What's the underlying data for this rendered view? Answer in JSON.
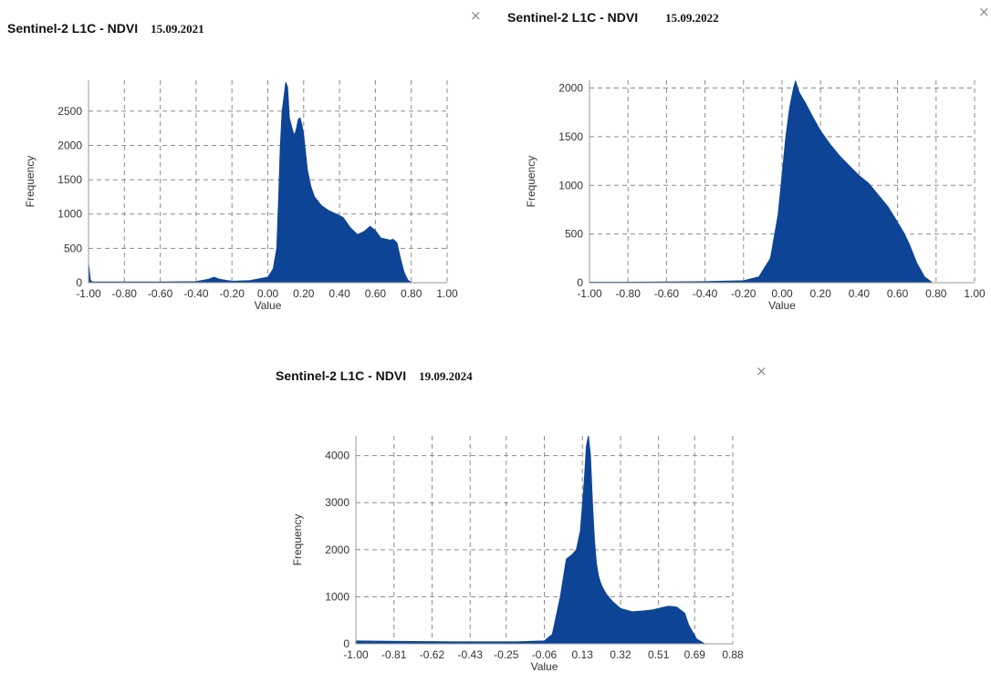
{
  "colors": {
    "fill": "#0d4496",
    "grid": "#8c8c8c",
    "axis": "#999999",
    "close": "#888888"
  },
  "close_icon": "×",
  "chart_data": [
    {
      "type": "area",
      "title": "Sentinel-2 L1C - NDVI",
      "date": "15.09.2021",
      "xlabel": "Value",
      "ylabel": "Frequency",
      "xlim": [
        -1.0,
        1.0
      ],
      "ylim": [
        0,
        2950
      ],
      "xticks": [
        -1.0,
        -0.8,
        -0.6,
        -0.4,
        -0.2,
        0.0,
        0.2,
        0.4,
        0.6,
        0.8,
        1.0
      ],
      "xtick_labels": [
        "-1.00",
        "-0.80",
        "-0.60",
        "-0.40",
        "-0.20",
        "0.00",
        "0.20",
        "0.40",
        "0.60",
        "0.80",
        "1.00"
      ],
      "yticks": [
        0,
        500,
        1000,
        1500,
        2000,
        2500
      ],
      "ytick_labels": [
        "0",
        "500",
        "1000",
        "1500",
        "2000",
        "2500"
      ],
      "grid": true,
      "x": [
        -1.0,
        -0.99,
        -0.98,
        -0.9,
        -0.6,
        -0.4,
        -0.33,
        -0.3,
        -0.27,
        -0.2,
        -0.1,
        0.0,
        0.03,
        0.05,
        0.06,
        0.07,
        0.08,
        0.09,
        0.1,
        0.11,
        0.12,
        0.13,
        0.14,
        0.15,
        0.16,
        0.17,
        0.18,
        0.19,
        0.2,
        0.21,
        0.22,
        0.24,
        0.26,
        0.3,
        0.34,
        0.38,
        0.42,
        0.46,
        0.5,
        0.54,
        0.57,
        0.6,
        0.63,
        0.65,
        0.68,
        0.7,
        0.72,
        0.74,
        0.76,
        0.78,
        0.8
      ],
      "y": [
        280,
        40,
        12,
        10,
        10,
        15,
        50,
        80,
        50,
        20,
        30,
        80,
        200,
        500,
        1200,
        2000,
        2500,
        2700,
        2920,
        2850,
        2400,
        2300,
        2200,
        2150,
        2250,
        2380,
        2400,
        2300,
        2150,
        1900,
        1650,
        1400,
        1250,
        1120,
        1050,
        1000,
        950,
        800,
        700,
        750,
        820,
        760,
        650,
        640,
        620,
        630,
        580,
        350,
        150,
        40,
        0
      ]
    },
    {
      "type": "area",
      "title": "Sentinel-2 L1C - NDVI",
      "date": "15.09.2022",
      "xlabel": "Value",
      "ylabel": "Frequency",
      "xlim": [
        -1.0,
        1.0
      ],
      "ylim": [
        0,
        2080
      ],
      "xticks": [
        -1.0,
        -0.8,
        -0.6,
        -0.4,
        -0.2,
        0.0,
        0.2,
        0.4,
        0.6,
        0.8,
        1.0
      ],
      "xtick_labels": [
        "-1.00",
        "-0.80",
        "-0.60",
        "-0.40",
        "-0.20",
        "0.00",
        "0.20",
        "0.40",
        "0.60",
        "0.80",
        "1.00"
      ],
      "yticks": [
        0,
        500,
        1000,
        1500,
        2000
      ],
      "ytick_labels": [
        "0",
        "500",
        "1000",
        "1500",
        "2000"
      ],
      "grid": true,
      "x": [
        -1.0,
        -0.8,
        -0.4,
        -0.2,
        -0.12,
        -0.06,
        -0.02,
        0.0,
        0.02,
        0.04,
        0.06,
        0.07,
        0.09,
        0.12,
        0.16,
        0.2,
        0.25,
        0.3,
        0.35,
        0.4,
        0.45,
        0.5,
        0.55,
        0.6,
        0.63,
        0.66,
        0.7,
        0.74,
        0.78
      ],
      "y": [
        5,
        5,
        10,
        20,
        60,
        250,
        700,
        1100,
        1500,
        1800,
        2000,
        2070,
        1950,
        1850,
        1700,
        1560,
        1420,
        1300,
        1200,
        1100,
        1020,
        900,
        780,
        620,
        520,
        400,
        200,
        60,
        0
      ]
    },
    {
      "type": "area",
      "title": "Sentinel-2 L1C - NDVI",
      "date": "19.09.2024",
      "xlabel": "Value",
      "ylabel": "Frequency",
      "xlim": [
        -1.0,
        0.88
      ],
      "ylim": [
        0,
        4420
      ],
      "xticks": [
        -1.0,
        -0.81,
        -0.62,
        -0.43,
        -0.25,
        -0.06,
        0.13,
        0.32,
        0.51,
        0.69,
        0.88
      ],
      "xtick_labels": [
        "-1.00",
        "-0.81",
        "-0.62",
        "-0.43",
        "-0.25",
        "-0.06",
        "0.13",
        "0.32",
        "0.51",
        "0.69",
        "0.88"
      ],
      "yticks": [
        0,
        1000,
        2000,
        3000,
        4000
      ],
      "ytick_labels": [
        "0",
        "1000",
        "2000",
        "3000",
        "4000"
      ],
      "grid": true,
      "x": [
        -1.0,
        -0.8,
        -0.5,
        -0.2,
        -0.06,
        -0.02,
        0.02,
        0.05,
        0.08,
        0.1,
        0.12,
        0.14,
        0.15,
        0.16,
        0.17,
        0.18,
        0.19,
        0.2,
        0.21,
        0.22,
        0.23,
        0.25,
        0.28,
        0.32,
        0.38,
        0.44,
        0.48,
        0.52,
        0.56,
        0.6,
        0.64,
        0.66,
        0.7,
        0.74
      ],
      "y": [
        60,
        50,
        40,
        40,
        60,
        200,
        1000,
        1800,
        1900,
        2000,
        2400,
        3500,
        4200,
        4420,
        4000,
        3000,
        2200,
        1700,
        1450,
        1300,
        1200,
        1050,
        900,
        750,
        680,
        700,
        720,
        760,
        800,
        780,
        650,
        400,
        100,
        0
      ]
    }
  ]
}
